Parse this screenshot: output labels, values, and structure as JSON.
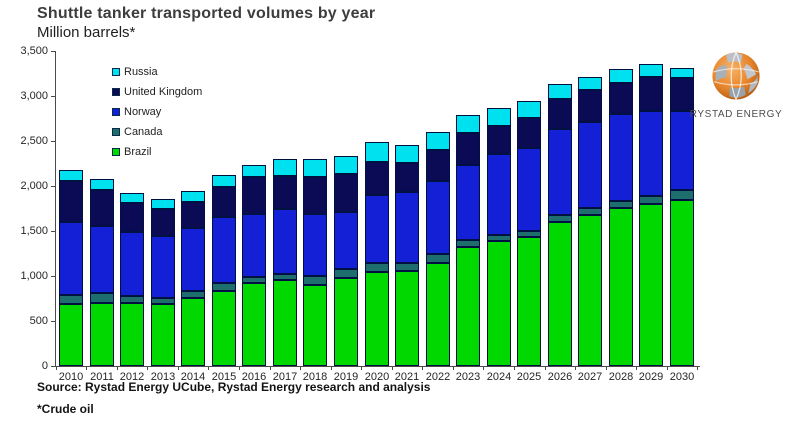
{
  "header": {
    "title": "Shuttle tanker transported volumes by year",
    "subtitle": "Million barrels*"
  },
  "branding": {
    "name": "RYSTAD ENERGY"
  },
  "footer": {
    "source": "Source: Rystad Energy UCube, Rystad Energy research and analysis",
    "footnote": "*Crude oil"
  },
  "colors": {
    "russia": "#00e1f0",
    "united_kingdom": "#0a0a55",
    "norway": "#1420d6",
    "canada": "#1f6e6e",
    "brazil": "#00d800",
    "segment_border": "#001040",
    "axis": "#4a4a4a",
    "text": "#262626",
    "title": "#3d3d3d"
  },
  "chart_data": {
    "type": "bar",
    "stacked": true,
    "title": "Shuttle tanker transported volumes by year",
    "ylabel": "Million barrels",
    "xlabel": "",
    "ylim": [
      0,
      3500
    ],
    "ytick_step": 500,
    "ytick_labels": [
      "0",
      "500",
      "1,000",
      "1,500",
      "2,000",
      "2,500",
      "3,000",
      "3,500"
    ],
    "grid": false,
    "legend_position": "top-left-inside",
    "legend_order": [
      "Russia",
      "United Kingdom",
      "Norway",
      "Canada",
      "Brazil"
    ],
    "stack_order_bottom_to_top": [
      "Brazil",
      "Canada",
      "Norway",
      "United Kingdom",
      "Russia"
    ],
    "categories": [
      "2010",
      "2011",
      "2012",
      "2013",
      "2014",
      "2015",
      "2016",
      "2017",
      "2018",
      "2019",
      "2020",
      "2021",
      "2022",
      "2023",
      "2024",
      "2025",
      "2026",
      "2027",
      "2028",
      "2029",
      "2030"
    ],
    "series": [
      {
        "name": "Brazil",
        "color": "#00d800",
        "values": [
          690,
          695,
          695,
          690,
          755,
          835,
          920,
          950,
          905,
          980,
          1040,
          1055,
          1140,
          1325,
          1390,
          1435,
          1605,
          1680,
          1750,
          1795,
          1845
        ]
      },
      {
        "name": "Canada",
        "color": "#1f6e6e",
        "values": [
          100,
          110,
          80,
          65,
          80,
          85,
          65,
          65,
          95,
          105,
          105,
          85,
          100,
          75,
          65,
          65,
          80,
          80,
          75,
          85,
          110
        ]
      },
      {
        "name": "Norway",
        "color": "#1420d6",
        "values": [
          810,
          740,
          715,
          690,
          705,
          730,
          695,
          725,
          685,
          635,
          755,
          790,
          810,
          835,
          895,
          920,
          950,
          955,
          970,
          940,
          880
        ]
      },
      {
        "name": "United Kingdom",
        "color": "#0a0a55",
        "values": [
          460,
          395,
          325,
          295,
          290,
          335,
          410,
          370,
          410,
          420,
          370,
          320,
          340,
          360,
          315,
          330,
          330,
          355,
          345,
          375,
          365
        ]
      },
      {
        "name": "Russia",
        "color": "#00e1f0",
        "values": [
          120,
          125,
          115,
          110,
          120,
          130,
          130,
          190,
          205,
          205,
          220,
          195,
          200,
          195,
          195,
          185,
          165,
          145,
          155,
          140,
          110
        ]
      }
    ],
    "totals": [
      2180,
      2065,
      1930,
      1850,
      1950,
      2115,
      2220,
      2300,
      2300,
      2345,
      2490,
      2445,
      2590,
      2790,
      2860,
      2935,
      3130,
      3215,
      3295,
      3335,
      3310
    ]
  }
}
